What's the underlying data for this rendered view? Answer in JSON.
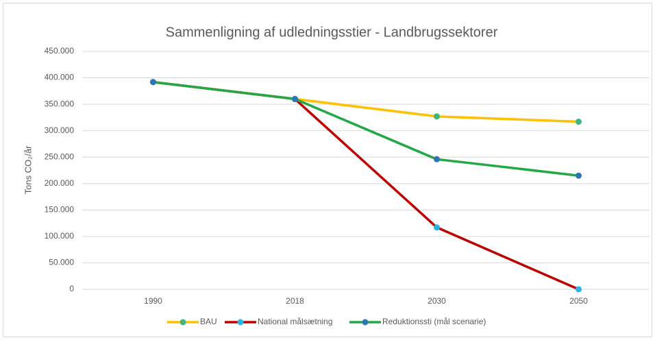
{
  "chart_data": {
    "type": "line",
    "title": "Sammenligning af udledningsstier - Landbrugssektorer",
    "y_label": "Tons CO₂/år",
    "categories": [
      "1990",
      "2018",
      "2030",
      "2050"
    ],
    "series": [
      {
        "name": "BAU",
        "color": "#ffc000",
        "marker_color": "#3fb67f",
        "values": [
          392000,
          360000,
          327000,
          317000
        ]
      },
      {
        "name": "National målsætning",
        "color": "#c00000",
        "marker_color": "#29b5e3",
        "values": [
          392000,
          360000,
          117000,
          0
        ]
      },
      {
        "name": "Reduktionssti (mål scenarie)",
        "color": "#22a845",
        "marker_color": "#2e75b6",
        "values": [
          392000,
          360000,
          246000,
          215000
        ]
      }
    ],
    "ylim": [
      0,
      450000
    ],
    "yticks": [
      0,
      {
        "value": 50000,
        "label": "50.000"
      },
      {
        "value": 100000,
        "label": "100.000"
      },
      {
        "value": 150000,
        "label": "150.000"
      },
      {
        "value": 200000,
        "label": "200.000"
      },
      {
        "value": 250000,
        "label": "250.000"
      },
      {
        "value": 300000,
        "label": "300.000"
      },
      {
        "value": 350000,
        "label": "350.000"
      },
      {
        "value": 400000,
        "label": "400.000"
      },
      {
        "value": 450000,
        "label": "450.000"
      }
    ],
    "grid": true,
    "legend": "bottom"
  }
}
